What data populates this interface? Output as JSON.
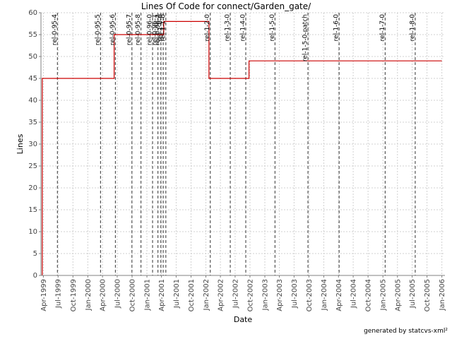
{
  "chart_data": {
    "type": "line",
    "title": "Lines Of Code for connect/Garden_gate/",
    "xlabel": "Date",
    "ylabel": "Lines",
    "ylim": [
      0,
      60
    ],
    "y_ticks": [
      0,
      5,
      10,
      15,
      20,
      25,
      30,
      35,
      40,
      45,
      50,
      55,
      60
    ],
    "xlim": [
      "1999-03-17",
      "2006-01-20"
    ],
    "x_ticks": [
      {
        "date": "1999-04-01",
        "label": "Apr-1999"
      },
      {
        "date": "1999-07-01",
        "label": "Jul-1999"
      },
      {
        "date": "1999-10-01",
        "label": "Oct-1999"
      },
      {
        "date": "2000-01-01",
        "label": "Jan-2000"
      },
      {
        "date": "2000-04-01",
        "label": "Apr-2000"
      },
      {
        "date": "2000-07-01",
        "label": "Jul-2000"
      },
      {
        "date": "2000-10-01",
        "label": "Oct-2000"
      },
      {
        "date": "2001-01-01",
        "label": "Jan-2001"
      },
      {
        "date": "2001-04-01",
        "label": "Apr-2001"
      },
      {
        "date": "2001-07-01",
        "label": "Jul-2001"
      },
      {
        "date": "2001-10-01",
        "label": "Oct-2001"
      },
      {
        "date": "2002-01-01",
        "label": "Jan-2002"
      },
      {
        "date": "2002-04-01",
        "label": "Apr-2002"
      },
      {
        "date": "2002-07-01",
        "label": "Jul-2002"
      },
      {
        "date": "2002-10-01",
        "label": "Oct-2002"
      },
      {
        "date": "2003-01-01",
        "label": "Jan-2003"
      },
      {
        "date": "2003-04-01",
        "label": "Apr-2003"
      },
      {
        "date": "2003-07-01",
        "label": "Jul-2003"
      },
      {
        "date": "2003-10-01",
        "label": "Oct-2003"
      },
      {
        "date": "2004-01-01",
        "label": "Jan-2004"
      },
      {
        "date": "2004-04-01",
        "label": "Apr-2004"
      },
      {
        "date": "2004-07-01",
        "label": "Jul-2004"
      },
      {
        "date": "2004-10-01",
        "label": "Oct-2004"
      },
      {
        "date": "2005-01-01",
        "label": "Jan-2005"
      },
      {
        "date": "2005-04-01",
        "label": "Apr-2005"
      },
      {
        "date": "2005-07-01",
        "label": "Jul-2005"
      },
      {
        "date": "2005-10-01",
        "label": "Oct-2005"
      },
      {
        "date": "2006-01-01",
        "label": "Jan-2006"
      }
    ],
    "series": [
      {
        "color": "#cc0000",
        "step": true,
        "points": [
          {
            "x": "1999-03-25",
            "y": 0
          },
          {
            "x": "1999-03-25",
            "y": 45
          },
          {
            "x": "2000-06-12",
            "y": 55
          },
          {
            "x": "2001-04-15",
            "y": 58
          },
          {
            "x": "2002-01-20",
            "y": 45
          },
          {
            "x": "2002-09-25",
            "y": 49
          },
          {
            "x": "2006-01-01",
            "y": 49
          }
        ]
      }
    ],
    "markers": [
      {
        "date": "1999-06-27",
        "label": "rel-0-95-4"
      },
      {
        "date": "2000-03-20",
        "label": "rel-0-95-5"
      },
      {
        "date": "2000-06-20",
        "label": "rel-0-95-6"
      },
      {
        "date": "2000-09-30",
        "label": "rel-0-95-7"
      },
      {
        "date": "2000-11-25",
        "label": "rel-0-95-8"
      },
      {
        "date": "2001-02-05",
        "label": "rel-0-96-0"
      },
      {
        "date": "2001-03-10",
        "label": "rel-0-96-1"
      },
      {
        "date": "2001-03-28",
        "label": "rel-0-96-2"
      },
      {
        "date": "2001-04-12",
        "label": "rel-1-0-0"
      },
      {
        "date": "2001-04-28",
        "label": "rel-1-1-0"
      },
      {
        "date": "2002-01-28",
        "label": "rel-1-2-0"
      },
      {
        "date": "2002-06-01",
        "label": "rel-1-3-0"
      },
      {
        "date": "2002-09-05",
        "label": "rel-1-4-0"
      },
      {
        "date": "2003-03-05",
        "label": "rel-1-5-0"
      },
      {
        "date": "2003-09-25",
        "label": "rel-1-5-0-patch"
      },
      {
        "date": "2004-04-05",
        "label": "rel-1-6-0"
      },
      {
        "date": "2005-01-15",
        "label": "rel-1-7-0"
      },
      {
        "date": "2005-07-20",
        "label": "rel-1-8-0"
      }
    ],
    "grid": true,
    "legend": "none"
  },
  "footer": "generated by statcvs-xml²"
}
